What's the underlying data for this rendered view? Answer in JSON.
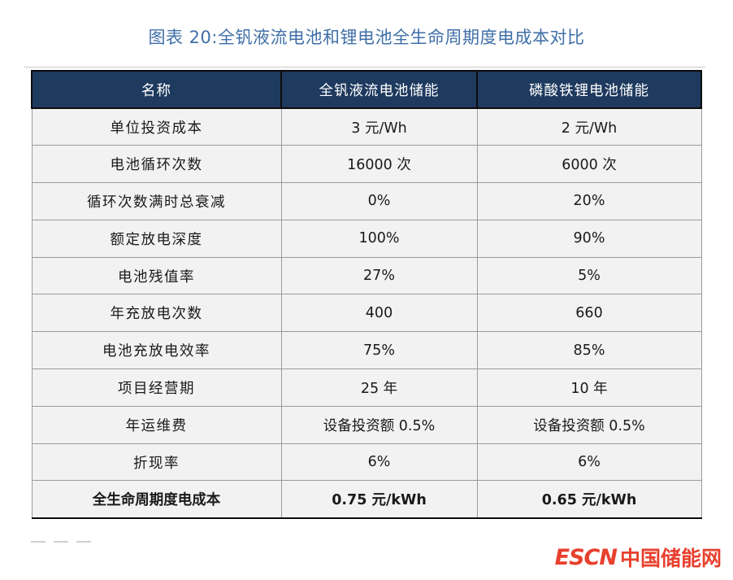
{
  "title": "图表 20:全钒液流电池和锂电池全生命周期度电成本对比",
  "table": {
    "headers": [
      "名称",
      "全钒液流电池储能",
      "磷酸铁锂电池储能"
    ],
    "rows": [
      [
        "单位投资成本",
        "3 元/Wh",
        "2 元/Wh"
      ],
      [
        "电池循环次数",
        "16000 次",
        "6000 次"
      ],
      [
        "循环次数满时总衰减",
        "0%",
        "20%"
      ],
      [
        "额定放电深度",
        "100%",
        "90%"
      ],
      [
        "电池残值率",
        "27%",
        "5%"
      ],
      [
        "年充放电次数",
        "400",
        "660"
      ],
      [
        "电池充放电效率",
        "75%",
        "85%"
      ],
      [
        "项目经营期",
        "25 年",
        "10 年"
      ],
      [
        "年运维费",
        "设备投资额 0.5%",
        "设备投资额 0.5%"
      ],
      [
        "折现率",
        "6%",
        "6%"
      ],
      [
        "全生命周期度电成本",
        "0.75 元/kWh",
        "0.65 元/kWh"
      ]
    ]
  },
  "logo": {
    "brand": "ESCN",
    "name": "中国储能网"
  }
}
